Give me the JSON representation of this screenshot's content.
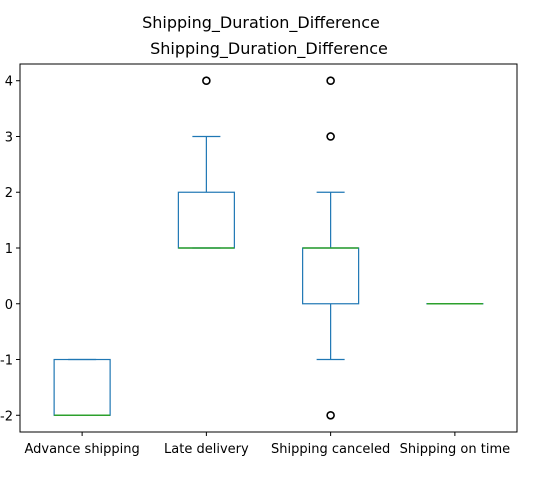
{
  "figure": {
    "suptitle": "Shipping_Duration_Difference"
  },
  "chart_data": {
    "type": "box",
    "title": "Shipping_Duration_Difference",
    "xlabel": "",
    "ylabel": "",
    "categories": [
      "Advance shipping",
      "Late delivery",
      "Shipping canceled",
      "Shipping on time"
    ],
    "ylim": [
      -2.3,
      4.3
    ],
    "yticks": [
      -2,
      -1,
      0,
      1,
      2,
      3,
      4
    ],
    "grid": false,
    "boxes": [
      {
        "whislo": -2,
        "q1": -2,
        "med": -2,
        "q3": -1,
        "whishi": -1,
        "fliers": []
      },
      {
        "whislo": 1,
        "q1": 1,
        "med": 1,
        "q3": 2,
        "whishi": 3,
        "fliers": [
          4
        ]
      },
      {
        "whislo": -1,
        "q1": 0,
        "med": 1,
        "q3": 1,
        "whishi": 2,
        "fliers": [
          3,
          4,
          -2
        ]
      },
      {
        "whislo": 0,
        "q1": 0,
        "med": 0,
        "q3": 0,
        "whishi": 0,
        "fliers": []
      }
    ],
    "colors": {
      "box": "#1f77b4",
      "median": "#2ca02c",
      "flier": "#000000"
    }
  }
}
